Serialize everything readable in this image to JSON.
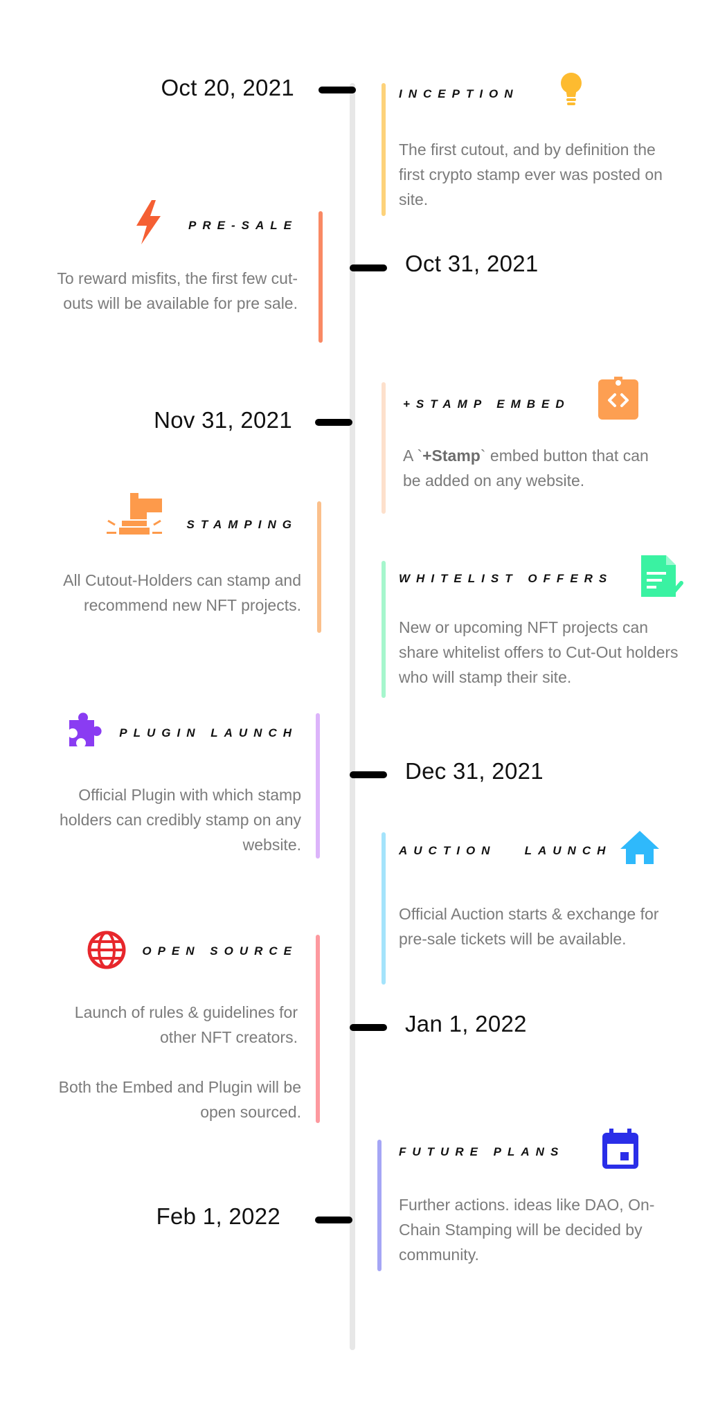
{
  "events": [
    {
      "date": "Oct 20, 2021",
      "title": "INCEPTION",
      "description": "The first cutout, and by definition the first crypto stamp ever was posted on site.",
      "icon": "lightbulb-icon",
      "color": "#fdd27a"
    },
    {
      "date": "Oct 31, 2021",
      "title": "PRE-SALE",
      "description": "To reward misfits,  the first few cut-outs will  be available for pre sale.",
      "icon": "lightning-icon",
      "color": "#f98964"
    },
    {
      "date": "Nov 31, 2021",
      "title": "+STAMP EMBED",
      "description_parts": [
        "A `",
        "+Stamp",
        "` embed button that can be added on any website."
      ],
      "icon": "code-embed-icon",
      "color": "#fde0cc"
    },
    {
      "title": "STAMPING",
      "description": "All Cutout-Holders can stamp and recommend new NFT projects.",
      "icon": "stamp-icon",
      "color": "#fbc08c"
    },
    {
      "title": "WHITELIST OFFERS",
      "description": "New or upcoming NFT projects can share whitelist offers to Cut-Out holders who will stamp their site.",
      "icon": "document-check-icon",
      "color": "#a6f6cd"
    },
    {
      "title": "PLUGIN LAUNCH",
      "description": "Official Plugin with which stamp holders can credibly stamp on any website.",
      "icon": "puzzle-icon",
      "color": "#dcb4fa"
    },
    {
      "date": "Dec 31, 2021",
      "title": "AUCTION   LAUNCH",
      "description": "Official Auction starts & exchange for pre-sale tickets will be available.",
      "icon": "home-icon",
      "color": "#a4e3fb"
    },
    {
      "date": "Jan 1, 2022",
      "title": "OPEN SOURCE",
      "description": "Launch of rules & guidelines for other NFT creators.",
      "description2": "Both the Embed and Plugin will be open sourced.",
      "icon": "globe-icon",
      "color": "#fd999f"
    },
    {
      "date": "Feb 1, 2022",
      "title": "FUTURE PLANS",
      "description": "Further actions. ideas like DAO, On-Chain Stamping will be decided by community.",
      "icon": "calendar-icon",
      "color": "#a5a6f5"
    }
  ]
}
